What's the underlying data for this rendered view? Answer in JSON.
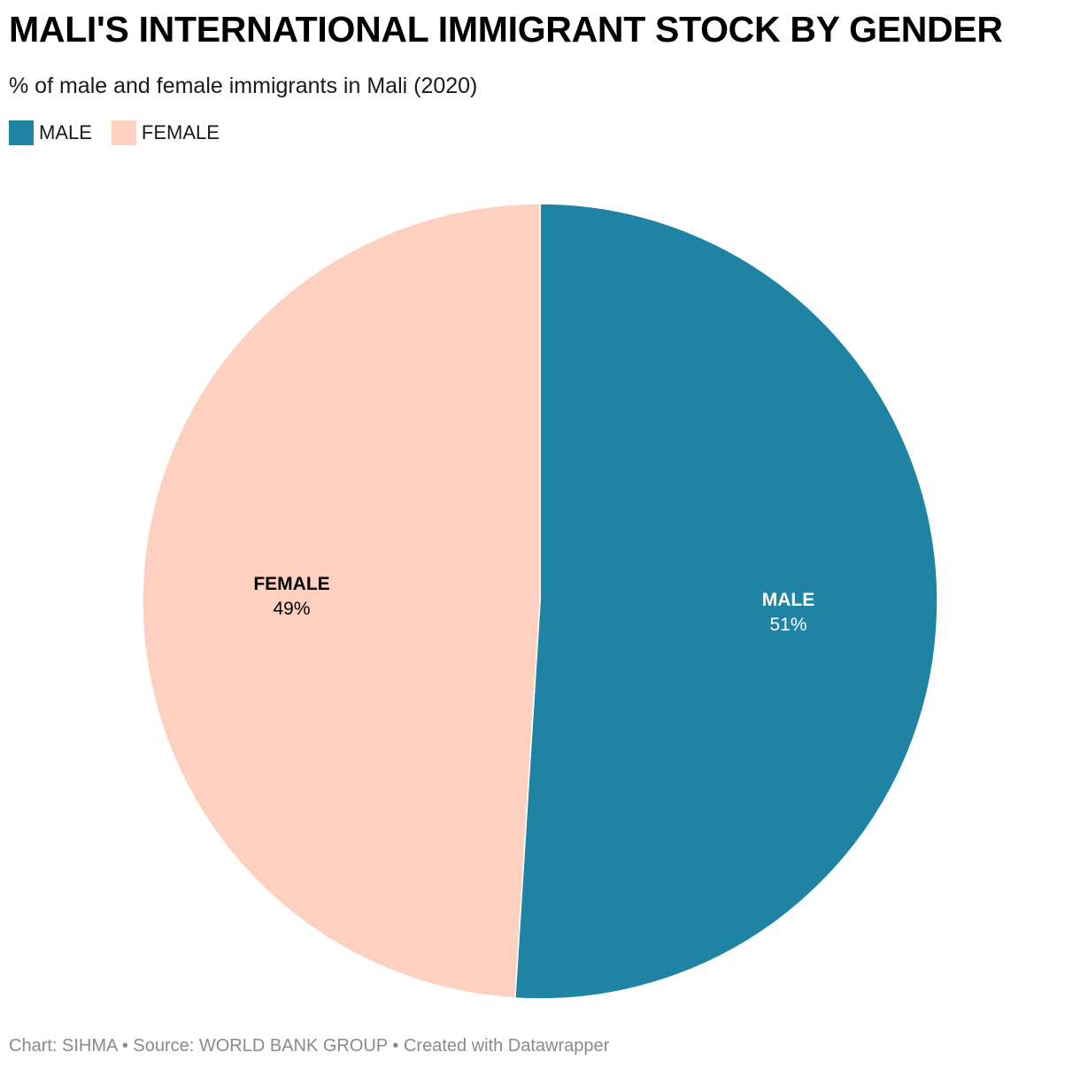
{
  "header": {
    "title": "MALI'S INTERNATIONAL IMMIGRANT STOCK BY GENDER",
    "subtitle": "% of male and female immigrants in Mali (2020)"
  },
  "legend": {
    "items": [
      {
        "label": "MALE",
        "color": "#1f83a3"
      },
      {
        "label": "FEMALE",
        "color": "#fdd0bf"
      }
    ]
  },
  "chart_data": {
    "type": "pie",
    "title": "MALI'S INTERNATIONAL IMMIGRANT STOCK BY GENDER",
    "subtitle": "% of male and female immigrants in Mali (2020)",
    "legend": "top-left",
    "slices": [
      {
        "label": "MALE",
        "value": 51,
        "display": "51%",
        "color": "#1f83a3",
        "text_color": "#ffffff"
      },
      {
        "label": "FEMALE",
        "value": 49,
        "display": "49%",
        "color": "#fdd0bf",
        "text_color": "#000000"
      }
    ]
  },
  "footer": {
    "text": "Chart: SIHMA • Source: WORLD BANK GROUP • Created with Datawrapper"
  }
}
